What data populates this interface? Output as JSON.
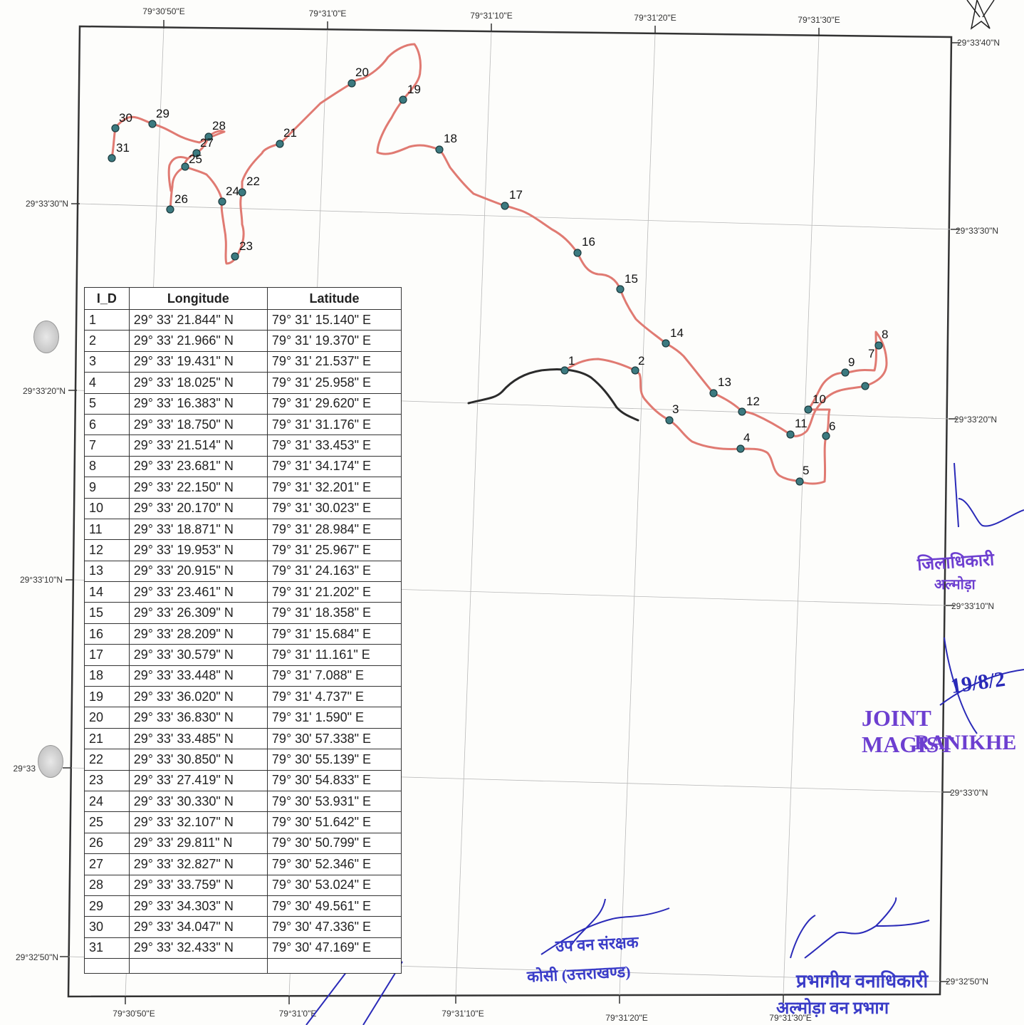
{
  "map": {
    "top_lon_labels": [
      "79°30'50\"E",
      "79°31'0\"E",
      "79°31'10\"E",
      "79°31'20\"E",
      "79°31'30\"E"
    ],
    "bottom_lon_labels": [
      "79°30'50\"E",
      "79°31'0\"E",
      "79°31'10\"E",
      "79°31'20\"E",
      "79°31'30\"E"
    ],
    "left_lat_labels": [
      "29°33'30\"N",
      "29°33'20\"N",
      "29°33'10\"N",
      "29°33",
      "29°32'50\"N"
    ],
    "right_lat_labels": [
      "29°33'40\"N",
      "29°33'30\"N",
      "29°33'20\"N",
      "29°33'10\"N",
      "29°33'0\"N",
      "29°32'50\"N"
    ],
    "route_color": "#e07a72",
    "road_color": "#2b2b2b",
    "point_color": "#3c7a80",
    "north_arrow": "north-arrow-icon"
  },
  "table": {
    "headers": [
      "I_D",
      "Longitude",
      "Latitude"
    ],
    "rows": [
      [
        "1",
        "29° 33' 21.844\" N",
        "79° 31' 15.140\" E"
      ],
      [
        "2",
        "29° 33' 21.966\" N",
        "79° 31' 19.370\" E"
      ],
      [
        "3",
        "29° 33' 19.431\" N",
        "79° 31' 21.537\" E"
      ],
      [
        "4",
        "29° 33' 18.025\" N",
        "79° 31' 25.958\" E"
      ],
      [
        "5",
        "29° 33' 16.383\" N",
        "79° 31' 29.620\" E"
      ],
      [
        "6",
        "29° 33' 18.750\" N",
        "79° 31' 31.176\" E"
      ],
      [
        "7",
        "29° 33' 21.514\" N",
        "79° 31' 33.453\" E"
      ],
      [
        "8",
        "29° 33' 23.681\" N",
        "79° 31' 34.174\" E"
      ],
      [
        "9",
        "29° 33' 22.150\" N",
        "79° 31' 32.201\" E"
      ],
      [
        "10",
        "29° 33' 20.170\" N",
        "79° 31' 30.023\" E"
      ],
      [
        "11",
        "29° 33' 18.871\" N",
        "79° 31' 28.984\" E"
      ],
      [
        "12",
        "29° 33' 19.953\" N",
        "79° 31' 25.967\" E"
      ],
      [
        "13",
        "29° 33' 20.915\" N",
        "79° 31' 24.163\" E"
      ],
      [
        "14",
        "29° 33' 23.461\" N",
        "79° 31' 21.202\" E"
      ],
      [
        "15",
        "29° 33' 26.309\" N",
        "79° 31' 18.358\" E"
      ],
      [
        "16",
        "29° 33' 28.209\" N",
        "79° 31' 15.684\" E"
      ],
      [
        "17",
        "29° 33' 30.579\" N",
        "79° 31' 11.161\" E"
      ],
      [
        "18",
        "29° 33' 33.448\" N",
        "79° 31' 7.088\" E"
      ],
      [
        "19",
        "29° 33' 36.020\" N",
        "79° 31' 4.737\" E"
      ],
      [
        "20",
        "29° 33' 36.830\" N",
        "79° 31' 1.590\" E"
      ],
      [
        "21",
        "29° 33' 33.485\" N",
        "79° 30' 57.338\" E"
      ],
      [
        "22",
        "29° 33' 30.850\" N",
        "79° 30' 55.139\" E"
      ],
      [
        "23",
        "29° 33' 27.419\" N",
        "79° 30' 54.833\" E"
      ],
      [
        "24",
        "29° 33' 30.330\" N",
        "79° 30' 53.931\" E"
      ],
      [
        "25",
        "29° 33' 32.107\" N",
        "79° 30' 51.642\" E"
      ],
      [
        "26",
        "29° 33' 29.811\" N",
        "79° 30' 50.799\" E"
      ],
      [
        "27",
        "29° 33' 32.827\" N",
        "79° 30' 52.346\" E"
      ],
      [
        "28",
        "29° 33' 33.759\" N",
        "79° 30' 53.024\" E"
      ],
      [
        "29",
        "29° 33' 34.303\" N",
        "79° 30' 49.561\" E"
      ],
      [
        "30",
        "29° 33' 34.047\" N",
        "79° 30' 47.336\" E"
      ],
      [
        "31",
        "29° 33' 32.433\" N",
        "79° 30' 47.169\" E"
      ]
    ]
  },
  "stamps": {
    "hindi_district": "जिलाधिकारी",
    "hindi_almora": "अल्मोड़ा",
    "joint": "JOINT MAGIST",
    "ranikhet": "RANIKHE",
    "date": "19/8/2",
    "forest_1": "प्रभागीय वनाधिकारी",
    "forest_2": "अल्मोड़ा वन प्रभाग",
    "conservator_1": "उप वन संरक्षक",
    "conservator_2": "कोसी (उत्तराखण्ड)"
  }
}
